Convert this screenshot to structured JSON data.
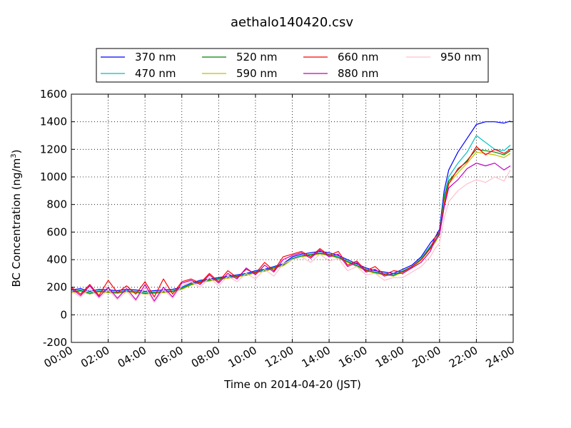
{
  "chart_data": {
    "type": "line",
    "title": "aethalo140420.csv",
    "xlabel": "Time on 2014-04-20 (JST)",
    "ylabel": "BC Concentration (ng/m",
    "ylabel_superscript": "3",
    "ylabel_suffix": ")",
    "xlim": [
      0,
      24
    ],
    "ylim": [
      -200,
      1600
    ],
    "x_unit": "hours",
    "x_ticks": [
      0,
      2,
      4,
      6,
      8,
      10,
      12,
      14,
      16,
      18,
      20,
      22,
      24
    ],
    "x_tick_labels": [
      "00:00",
      "02:00",
      "04:00",
      "06:00",
      "08:00",
      "10:00",
      "12:00",
      "14:00",
      "16:00",
      "18:00",
      "20:00",
      "22:00",
      "24:00"
    ],
    "y_ticks": [
      -200,
      0,
      200,
      400,
      600,
      800,
      1000,
      1200,
      1400,
      1600
    ],
    "y_tick_labels": [
      "-200",
      "0",
      "200",
      "400",
      "600",
      "800",
      "1000",
      "1200",
      "1400",
      "1600"
    ],
    "grid": true,
    "legend_position": "top-center",
    "x": [
      0.0,
      0.5,
      1.0,
      1.5,
      2.0,
      2.5,
      3.0,
      3.5,
      4.0,
      4.5,
      5.0,
      5.5,
      6.0,
      6.5,
      7.0,
      7.5,
      8.0,
      8.5,
      9.0,
      9.5,
      10.0,
      10.5,
      11.0,
      11.5,
      12.0,
      12.5,
      13.0,
      13.5,
      14.0,
      14.5,
      15.0,
      15.5,
      16.0,
      16.5,
      17.0,
      17.5,
      18.0,
      18.5,
      19.0,
      19.5,
      19.75,
      20.0,
      20.25,
      20.5,
      21.0,
      21.5,
      22.0,
      22.5,
      23.0,
      23.5,
      23.85
    ],
    "series": [
      {
        "name": "370 nm",
        "color": "#0000ff",
        "values": [
          180,
          190,
          170,
          185,
          180,
          175,
          185,
          180,
          170,
          175,
          180,
          185,
          200,
          230,
          250,
          260,
          270,
          280,
          290,
          300,
          320,
          330,
          350,
          370,
          420,
          440,
          450,
          460,
          450,
          430,
          400,
          370,
          340,
          320,
          310,
          300,
          330,
          360,
          420,
          520,
          560,
          620,
          900,
          1050,
          1180,
          1280,
          1380,
          1400,
          1400,
          1390,
          1405
        ]
      },
      {
        "name": "470 nm",
        "color": "#00bfbf",
        "values": [
          170,
          180,
          160,
          175,
          170,
          165,
          175,
          170,
          160,
          165,
          170,
          175,
          195,
          225,
          245,
          255,
          265,
          275,
          285,
          295,
          315,
          325,
          345,
          365,
          410,
          430,
          440,
          450,
          440,
          420,
          390,
          360,
          330,
          310,
          300,
          290,
          320,
          350,
          410,
          500,
          540,
          600,
          860,
          1000,
          1100,
          1180,
          1300,
          1250,
          1200,
          1190,
          1230
        ]
      },
      {
        "name": "520 nm",
        "color": "#008000",
        "values": [
          165,
          175,
          155,
          170,
          165,
          160,
          170,
          165,
          155,
          160,
          165,
          170,
          190,
          220,
          240,
          250,
          260,
          270,
          280,
          290,
          310,
          320,
          340,
          360,
          405,
          425,
          435,
          445,
          435,
          415,
          385,
          355,
          325,
          305,
          295,
          285,
          315,
          345,
          400,
          490,
          530,
          590,
          840,
          970,
          1050,
          1120,
          1200,
          1190,
          1180,
          1160,
          1190
        ]
      },
      {
        "name": "590 nm",
        "color": "#bfbf00",
        "values": [
          160,
          170,
          150,
          165,
          160,
          155,
          165,
          160,
          150,
          155,
          160,
          165,
          185,
          215,
          235,
          245,
          255,
          265,
          275,
          285,
          305,
          315,
          335,
          355,
          400,
          420,
          430,
          440,
          430,
          410,
          380,
          350,
          320,
          300,
          290,
          280,
          310,
          340,
          395,
          480,
          520,
          580,
          820,
          950,
          1030,
          1100,
          1180,
          1170,
          1160,
          1140,
          1170
        ]
      },
      {
        "name": "660 nm",
        "color": "#ff0000",
        "values": [
          200,
          150,
          220,
          140,
          250,
          160,
          210,
          150,
          240,
          130,
          260,
          150,
          240,
          260,
          230,
          300,
          240,
          320,
          270,
          330,
          300,
          380,
          320,
          420,
          440,
          460,
          420,
          480,
          430,
          460,
          360,
          390,
          320,
          350,
          290,
          320,
          310,
          350,
          400,
          480,
          560,
          600,
          800,
          950,
          1060,
          1110,
          1220,
          1160,
          1200,
          1170,
          1200
        ]
      },
      {
        "name": "880 nm",
        "color": "#bf00bf",
        "values": [
          190,
          140,
          210,
          130,
          200,
          120,
          190,
          110,
          220,
          100,
          200,
          130,
          230,
          250,
          220,
          290,
          230,
          300,
          260,
          340,
          290,
          360,
          310,
          400,
          430,
          450,
          410,
          470,
          420,
          440,
          350,
          380,
          310,
          330,
          280,
          300,
          300,
          340,
          380,
          460,
          540,
          580,
          780,
          920,
          980,
          1060,
          1100,
          1080,
          1100,
          1050,
          1080
        ]
      },
      {
        "name": "950 nm",
        "color": "#ffc0cb",
        "values": [
          170,
          130,
          190,
          120,
          180,
          110,
          170,
          100,
          200,
          90,
          180,
          120,
          210,
          240,
          200,
          270,
          210,
          280,
          240,
          300,
          260,
          330,
          280,
          370,
          400,
          420,
          380,
          440,
          390,
          410,
          320,
          350,
          290,
          300,
          250,
          270,
          270,
          310,
          350,
          420,
          480,
          520,
          700,
          820,
          900,
          950,
          980,
          960,
          1000,
          970,
          1050
        ]
      }
    ]
  }
}
